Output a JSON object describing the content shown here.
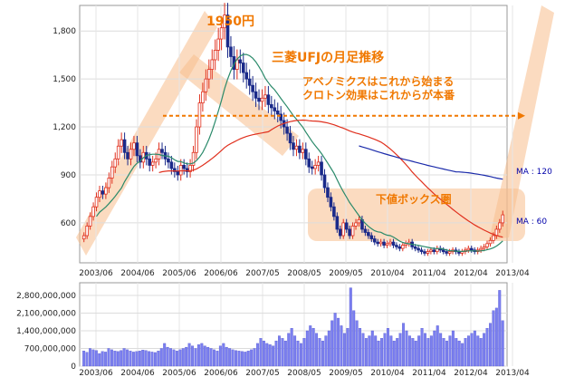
{
  "chart_data": [
    {
      "type": "candlestick",
      "title": "三菱UFJの月足推移",
      "annotations": {
        "peak_label": "1950円",
        "line1": "アベノミクスはこれから始まる",
        "line2": "クロトン効果はこれからが本番",
        "box_label": "下値ボックス圏"
      },
      "x_tick_labels": [
        "2003/06",
        "2004/06",
        "2005/06",
        "2006/06",
        "2007/05",
        "2008/05",
        "2009/05",
        "2010/04",
        "2011/04",
        "2012/04",
        "2013/04"
      ],
      "y_ticks": [
        600,
        900,
        1200,
        1500,
        1800
      ],
      "y_tick_labels": [
        "600",
        "900",
        "1,200",
        "1,500",
        "1,800"
      ],
      "ylim": [
        350,
        1960
      ],
      "reference_line": 1270,
      "ma_labels": [
        "MA : 120",
        "MA : 60"
      ],
      "close_monthly": [
        520,
        580,
        640,
        700,
        760,
        800,
        780,
        820,
        880,
        950,
        1000,
        1080,
        1120,
        1040,
        1000,
        1060,
        1100,
        1020,
        980,
        1040,
        1000,
        960,
        980,
        1000,
        1060,
        1040,
        1000,
        980,
        940,
        920,
        900,
        960,
        940,
        920,
        960,
        1040,
        1200,
        1350,
        1420,
        1500,
        1560,
        1620,
        1680,
        1750,
        1820,
        1900,
        1700,
        1640,
        1560,
        1620,
        1600,
        1540,
        1500,
        1460,
        1420,
        1380,
        1360,
        1380,
        1400,
        1340,
        1320,
        1300,
        1280,
        1240,
        1200,
        1160,
        1100,
        1060,
        1080,
        1040,
        1060,
        1000,
        950,
        940,
        960,
        980,
        900,
        820,
        760,
        700,
        640,
        560,
        520,
        600,
        560,
        520,
        580,
        600,
        620,
        560,
        540,
        520,
        500,
        480,
        470,
        480,
        460,
        470,
        480,
        460,
        450,
        440,
        460,
        470,
        480,
        450,
        440,
        430,
        420,
        410,
        420,
        430,
        420,
        440,
        430,
        420,
        410,
        420,
        430,
        420,
        410,
        420,
        430,
        440,
        430,
        420,
        430,
        440,
        450,
        470,
        490,
        520,
        560,
        600,
        650
      ]
    },
    {
      "type": "bar",
      "title": "",
      "y_ticks": [
        0,
        700000000,
        1400000000,
        2100000000,
        2800000000
      ],
      "y_tick_labels": [
        "0",
        "700,000,000",
        "1,400,000,000",
        "2,100,000,000",
        "2,800,000,000"
      ],
      "ylim": [
        0,
        3300000000
      ],
      "x_tick_labels": [
        "2003/06",
        "2004/06",
        "2005/06",
        "2006/06",
        "2007/05",
        "2008/05",
        "2009/05",
        "2010/04",
        "2011/04",
        "2012/04",
        "2013/04"
      ],
      "volume_monthly_millions": [
        600,
        550,
        700,
        650,
        620,
        500,
        580,
        560,
        700,
        650,
        600,
        580,
        620,
        700,
        650,
        600,
        560,
        580,
        600,
        640,
        620,
        580,
        560,
        540,
        600,
        700,
        900,
        750,
        700,
        650,
        600,
        650,
        700,
        750,
        900,
        800,
        700,
        850,
        900,
        800,
        750,
        700,
        650,
        600,
        800,
        900,
        750,
        700,
        650,
        620,
        600,
        580,
        560,
        600,
        650,
        700,
        900,
        1100,
        1000,
        900,
        850,
        800,
        1000,
        1200,
        1100,
        1000,
        1300,
        1500,
        1200,
        1000,
        900,
        1100,
        1400,
        1600,
        1500,
        1300,
        1100,
        1000,
        1200,
        1400,
        1800,
        2100,
        1900,
        1600,
        1300,
        1500,
        3100,
        2200,
        1800,
        1500,
        1300,
        1100,
        1200,
        1400,
        1200,
        1000,
        1100,
        1300,
        1500,
        1200,
        1000,
        1100,
        1300,
        1700,
        1400,
        1200,
        1100,
        1000,
        1200,
        1500,
        1300,
        1100,
        1200,
        1400,
        1600,
        1300,
        1100,
        1000,
        1200,
        1400,
        1100,
        1000,
        900,
        1100,
        1200,
        1300,
        1400,
        1200,
        1100,
        1300,
        1500,
        1700,
        2200,
        2300,
        3000,
        1800
      ]
    }
  ]
}
